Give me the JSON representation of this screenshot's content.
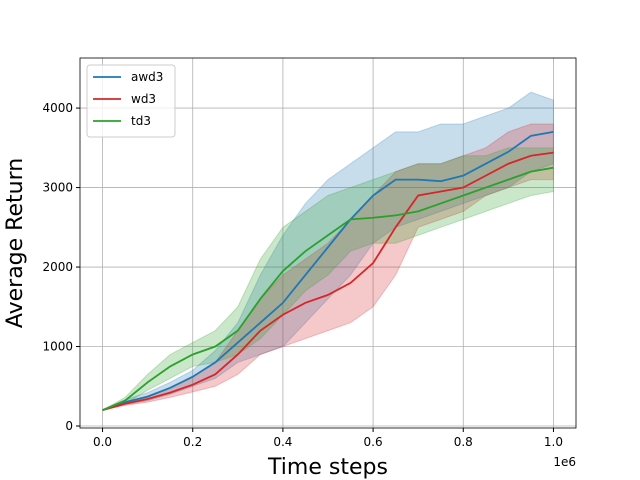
{
  "chart_data": {
    "type": "line",
    "x_label": "Time steps",
    "y_label": "Average Return",
    "x_offset_label": "1e6",
    "x": [
      0,
      0.05,
      0.1,
      0.15,
      0.2,
      0.25,
      0.3,
      0.35,
      0.4,
      0.45,
      0.5,
      0.55,
      0.6,
      0.65,
      0.7,
      0.75,
      0.8,
      0.85,
      0.9,
      0.95,
      1.0
    ],
    "xlim": [
      -0.05,
      1.05
    ],
    "xticks": [
      {
        "value": 0,
        "label": "0.0"
      },
      0.2,
      0.4,
      0.6,
      0.8,
      {
        "value": 1,
        "label": "1.0"
      }
    ],
    "ylim": [
      -25,
      4630
    ],
    "yticks": [
      0,
      1000,
      2000,
      3000,
      4000
    ],
    "grid": true,
    "legend": "upper left",
    "band_opacity": 0.25,
    "series": [
      {
        "name": "awd3",
        "color": "#1f77b4",
        "values": [
          200,
          300,
          370,
          480,
          620,
          800,
          1050,
          1300,
          1550,
          1900,
          2250,
          2600,
          2900,
          3100,
          3100,
          3080,
          3150,
          3300,
          3450,
          3650,
          3700
        ],
        "upper": [
          200,
          330,
          420,
          550,
          700,
          950,
          1300,
          1900,
          2400,
          2800,
          3100,
          3300,
          3500,
          3700,
          3700,
          3800,
          3800,
          3900,
          4000,
          4200,
          4100
        ],
        "lower": [
          200,
          270,
          320,
          400,
          500,
          600,
          800,
          900,
          1000,
          1300,
          1600,
          1900,
          2300,
          2500,
          2600,
          2700,
          2800,
          2900,
          3000,
          3200,
          3300
        ]
      },
      {
        "name": "wd3",
        "color": "#d62728",
        "values": [
          200,
          280,
          340,
          420,
          520,
          650,
          900,
          1200,
          1400,
          1550,
          1650,
          1800,
          2050,
          2500,
          2900,
          2950,
          3000,
          3150,
          3300,
          3400,
          3440
        ],
        "upper": [
          200,
          300,
          380,
          480,
          620,
          800,
          1200,
          1600,
          1900,
          2100,
          2300,
          2600,
          2900,
          3200,
          3300,
          3300,
          3400,
          3500,
          3700,
          3800,
          3800
        ],
        "lower": [
          200,
          260,
          300,
          360,
          430,
          500,
          650,
          900,
          1000,
          1100,
          1200,
          1300,
          1500,
          1900,
          2500,
          2600,
          2700,
          2900,
          3000,
          3100,
          3100
        ]
      },
      {
        "name": "td3",
        "color": "#2ca02c",
        "values": [
          200,
          320,
          550,
          750,
          900,
          1000,
          1200,
          1600,
          1950,
          2200,
          2400,
          2600,
          2620,
          2650,
          2700,
          2800,
          2900,
          3000,
          3100,
          3200,
          3250
        ],
        "upper": [
          200,
          360,
          650,
          900,
          1050,
          1200,
          1500,
          2100,
          2500,
          2700,
          2900,
          3000,
          3100,
          3200,
          3300,
          3300,
          3400,
          3400,
          3500,
          3500,
          3500
        ],
        "lower": [
          200,
          280,
          450,
          600,
          750,
          800,
          900,
          1100,
          1400,
          1700,
          1900,
          2200,
          2300,
          2300,
          2400,
          2500,
          2600,
          2700,
          2800,
          2900,
          2950
        ]
      }
    ]
  }
}
